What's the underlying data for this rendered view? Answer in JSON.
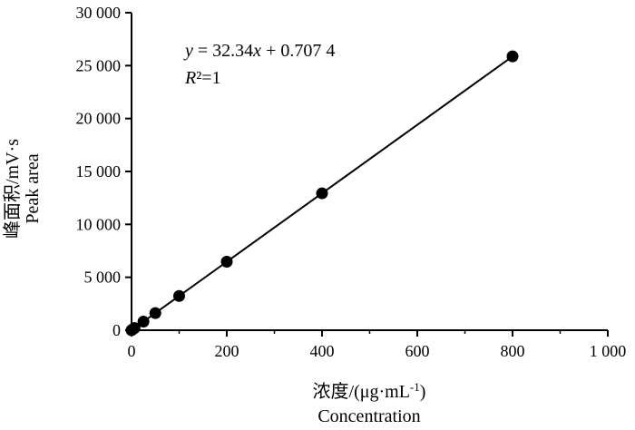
{
  "chart_data": {
    "type": "scatter",
    "series": [
      {
        "x": [
          0,
          3.125,
          6.25,
          25,
          50,
          100,
          200,
          400,
          800
        ],
        "y": [
          1,
          102,
          203,
          809,
          1618,
          3235,
          6469,
          12937,
          25873
        ]
      }
    ],
    "fit_line": {
      "slope": 32.34,
      "intercept": 0.7074,
      "x_range": [
        0,
        800
      ]
    },
    "equation": {
      "italic_y": "y",
      "middle": " = 32.34",
      "italic_x": "x",
      "tail": " + 0.707 4"
    },
    "r_squared": {
      "italic_r": "R",
      "tail": "²=1"
    },
    "xlabel": {
      "line1_prefix": "浓度/(μg·mL",
      "line1_sup": "-1",
      "line1_suffix": ")",
      "line2": "Concentration"
    },
    "ylabel": {
      "line1": "峰面积/mV·s",
      "line2": "Peak area"
    },
    "xlim": [
      0,
      1000
    ],
    "ylim": [
      0,
      30000
    ],
    "xticks": [
      {
        "value": 0,
        "label": "0"
      },
      {
        "value": 200,
        "label": "200"
      },
      {
        "value": 400,
        "label": "400"
      },
      {
        "value": 600,
        "label": "600"
      },
      {
        "value": 800,
        "label": "800"
      },
      {
        "value": 1000,
        "label": "1 000"
      }
    ],
    "yticks": [
      {
        "value": 0,
        "label": "0"
      },
      {
        "value": 5000,
        "label": "5 000"
      },
      {
        "value": 10000,
        "label": "10 000"
      },
      {
        "value": 15000,
        "label": "15 000"
      },
      {
        "value": 20000,
        "label": "20 000"
      },
      {
        "value": 25000,
        "label": "25 000"
      },
      {
        "value": 30000,
        "label": "30 000"
      }
    ],
    "grid": false,
    "marker_color": "#000000",
    "line_color": "#000000"
  }
}
